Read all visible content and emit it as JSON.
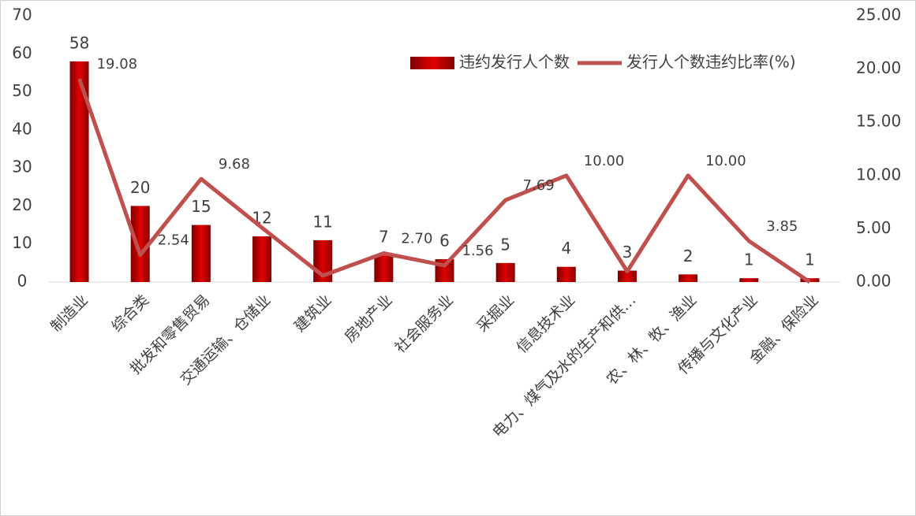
{
  "chart_data": {
    "type": "bar",
    "categories": [
      "制造业",
      "综合类",
      "批发和零售贸易",
      "交通运输、仓储业",
      "建筑业",
      "房地产业",
      "社会服务业",
      "采掘业",
      "信息技术业",
      "电力、煤气及水的生产和供…",
      "农、林、牧、渔业",
      "传播与文化产业",
      "金融、保险业"
    ],
    "series": [
      {
        "name": "违约发行人个数",
        "type": "bar",
        "color": "#c00000",
        "values": [
          58,
          20,
          15,
          12,
          11,
          7,
          6,
          5,
          4,
          3,
          2,
          1,
          1
        ]
      },
      {
        "name": "发行人个数违约比率(%)",
        "type": "line",
        "axis": "y2",
        "color": "#c0504d",
        "values": [
          19.08,
          2.54,
          9.68,
          5.1,
          0.6,
          2.7,
          1.56,
          7.69,
          10.0,
          1.0,
          10.0,
          3.85,
          0
        ],
        "value_labels": [
          "19.08",
          "2.54",
          "9.68",
          null,
          null,
          "2.70",
          "1.56",
          "7.69",
          "10.00",
          null,
          "10.00",
          "3.85",
          null
        ]
      }
    ],
    "ylim": [
      0,
      70
    ],
    "yticks": [
      0,
      10,
      20,
      30,
      40,
      50,
      60,
      70
    ],
    "y2lim": [
      0,
      25
    ],
    "y2ticks": [
      {
        "value": 0,
        "label": "0.00"
      },
      {
        "value": 5,
        "label": "5.00"
      },
      {
        "value": 10,
        "label": "10.00"
      },
      {
        "value": 15,
        "label": "15.00"
      },
      {
        "value": 20,
        "label": "20.00"
      },
      {
        "value": 25,
        "label": "25.00"
      }
    ],
    "legend": "top-right",
    "grid": false
  }
}
